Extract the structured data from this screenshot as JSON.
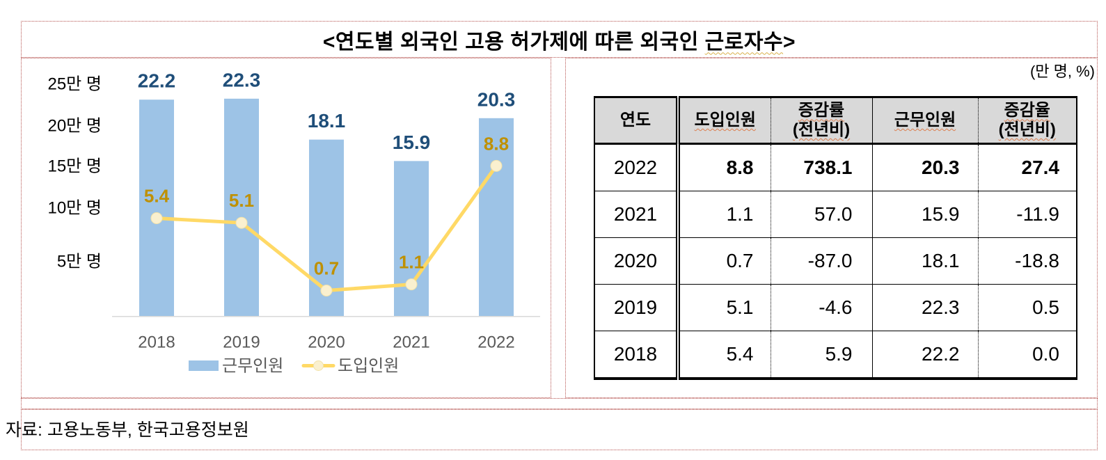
{
  "title": {
    "prefix": "<연도별 외국인 고용 허가제에 따른 외국인 ",
    "flagged": "근로자수",
    "suffix": ">"
  },
  "unit_note": "(만 명, %)",
  "source": "자료: 고용노동부, 한국고용정보원",
  "chart_data": {
    "type": "bar+line",
    "categories": [
      "2018",
      "2019",
      "2020",
      "2021",
      "2022"
    ],
    "series": [
      {
        "name": "근무인원",
        "type": "bar",
        "values": [
          22.2,
          22.3,
          18.1,
          15.9,
          20.3
        ],
        "color": "#9DC3E6",
        "label_color": "#1F4E79"
      },
      {
        "name": "도입인원",
        "type": "line",
        "values": [
          5.4,
          5.1,
          0.7,
          1.1,
          8.8
        ],
        "color": "#FFD966",
        "label_color": "#BF9000",
        "marker_fill": "#FAF0CF"
      }
    ],
    "y_axis": {
      "tick_labels": [
        "25만 명",
        "20만 명",
        "15만 명",
        "10만 명",
        "5만 명"
      ],
      "ylim": [
        0,
        25
      ],
      "tick_color": "#000000"
    },
    "x_axis": {
      "label_color": "#595959",
      "axis_color": "#D9D9D9"
    },
    "grid": false,
    "legend_position": "bottom",
    "y2_visual_map": {
      "slope": 1.58,
      "intercept": 1.5
    }
  },
  "table": {
    "headers": [
      "연도",
      "도입인원",
      "증감률\n(전년비)",
      "근무인원",
      "증감율\n(전년비)"
    ],
    "rows": [
      {
        "year": "2022",
        "values": [
          "8.8",
          "738.1",
          "20.3",
          "27.4"
        ],
        "bold": true
      },
      {
        "year": "2021",
        "values": [
          "1.1",
          "57.0",
          "15.9",
          "-11.9"
        ],
        "bold": false
      },
      {
        "year": "2020",
        "values": [
          "0.7",
          "-87.0",
          "18.1",
          "-18.8"
        ],
        "bold": false
      },
      {
        "year": "2019",
        "values": [
          "5.1",
          "-4.6",
          "22.3",
          "0.5"
        ],
        "bold": false
      },
      {
        "year": "2018",
        "values": [
          "5.4",
          "5.9",
          "22.2",
          "0.0"
        ],
        "bold": false
      }
    ]
  },
  "colors": {
    "doc_border": "#b5524f",
    "header_bg": "#d9d9d9",
    "bar": "#9DC3E6",
    "bar_label": "#1F4E79",
    "line": "#FFD966",
    "line_label": "#BF9000"
  }
}
